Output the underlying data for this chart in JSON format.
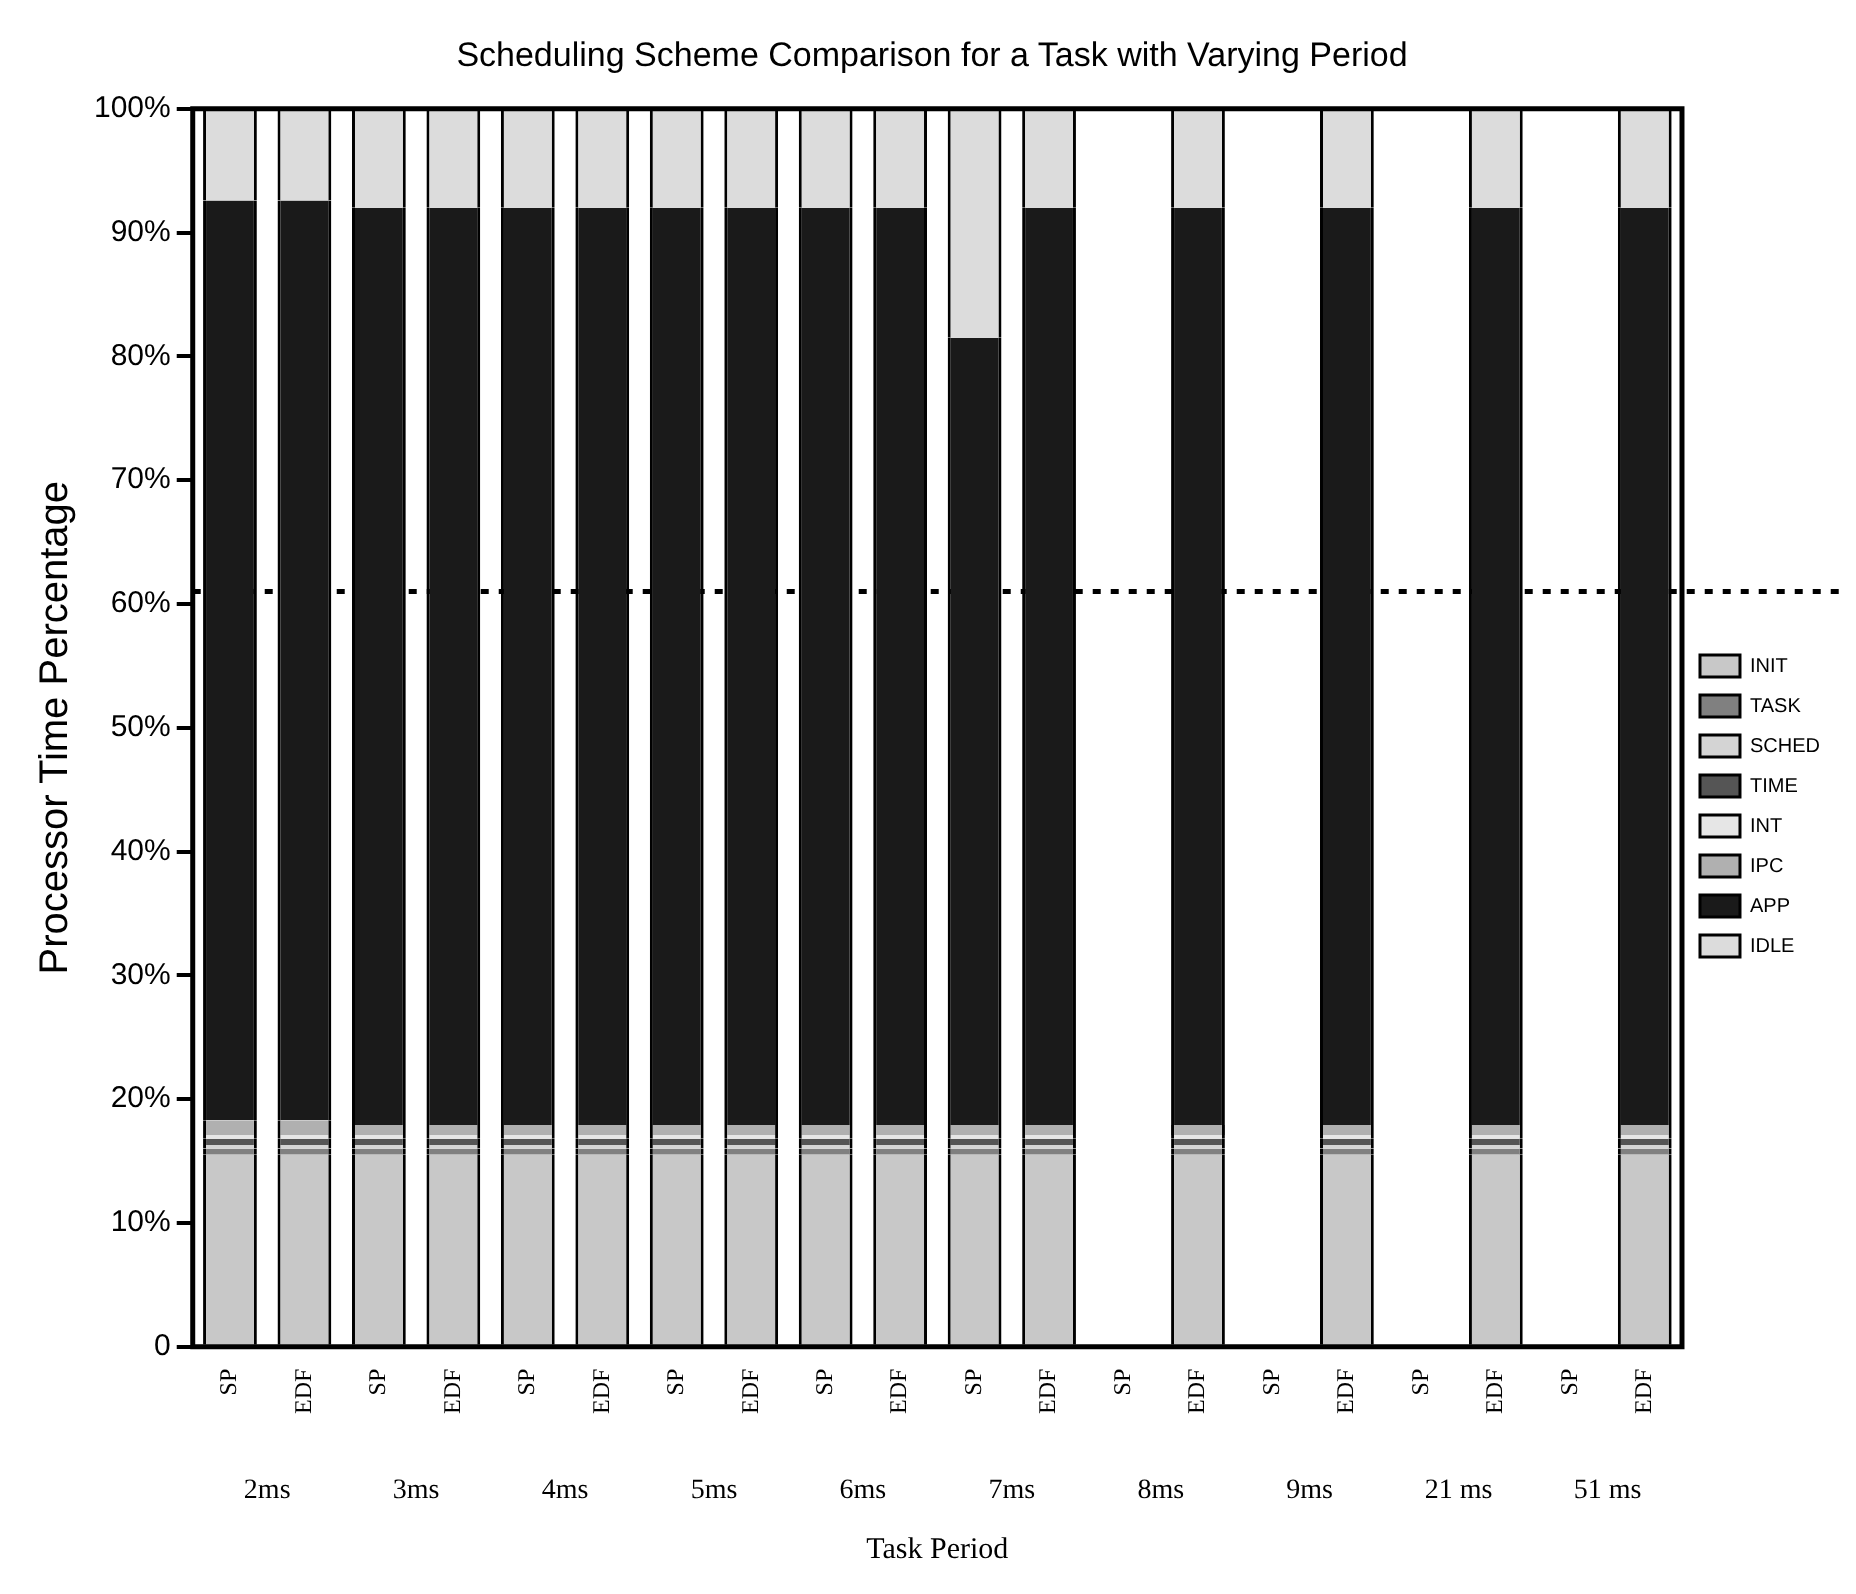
{
  "chart_data": {
    "type": "bar",
    "title": "Scheduling Scheme Comparison for a Task with Varying Period",
    "xlabel": "Task Period",
    "ylabel": "Processor Time Percentage",
    "categories": [
      "SP",
      "EDF",
      "SP",
      "EDF",
      "SP",
      "EDF",
      "SP",
      "EDF",
      "SP",
      "EDF",
      "SP",
      "EDF",
      "SP",
      "EDF",
      "SP",
      "EDF",
      "SP",
      "EDF",
      "SP",
      "EDF"
    ],
    "stacked": true,
    "series": [
      {
        "name": "INIT",
        "color": "#c8c8c8",
        "values": [
          15.5,
          15.5,
          15.5,
          15.5,
          15.5,
          15.5,
          15.5,
          15.5,
          15.5,
          15.5,
          15.5,
          15.5,
          null,
          15.5,
          null,
          15.5,
          null,
          15.5,
          null,
          15.5
        ]
      },
      {
        "name": "TASK",
        "color": "#808080",
        "values": [
          0.5,
          0.5,
          0.5,
          0.5,
          0.5,
          0.5,
          0.5,
          0.5,
          0.5,
          0.5,
          0.5,
          0.5,
          null,
          0.5,
          null,
          0.5,
          null,
          0.5,
          null,
          0.5
        ]
      },
      {
        "name": "SCHED",
        "color": "#d4d4d4",
        "values": [
          0.3,
          0.3,
          0.3,
          0.3,
          0.3,
          0.3,
          0.3,
          0.3,
          0.3,
          0.3,
          0.3,
          0.3,
          null,
          0.3,
          null,
          0.3,
          null,
          0.3,
          null,
          0.3
        ]
      },
      {
        "name": "TIME",
        "color": "#555555",
        "values": [
          0.5,
          0.5,
          0.5,
          0.5,
          0.5,
          0.5,
          0.5,
          0.5,
          0.5,
          0.5,
          0.5,
          0.5,
          null,
          0.5,
          null,
          0.5,
          null,
          0.5,
          null,
          0.5
        ]
      },
      {
        "name": "INT",
        "color": "#e6e6e6",
        "values": [
          0.3,
          0.3,
          0.3,
          0.3,
          0.3,
          0.3,
          0.3,
          0.3,
          0.3,
          0.3,
          0.3,
          0.3,
          null,
          0.3,
          null,
          0.3,
          null,
          0.3,
          null,
          0.3
        ]
      },
      {
        "name": "IPC",
        "color": "#b0b0b0",
        "values": [
          1.2,
          1.2,
          0.8,
          0.8,
          0.8,
          0.8,
          0.8,
          0.8,
          0.8,
          0.8,
          0.8,
          0.8,
          null,
          0.8,
          null,
          0.8,
          null,
          0.8,
          null,
          0.8
        ]
      },
      {
        "name": "APP",
        "color": "#1a1a1a",
        "values": [
          74.3,
          74.3,
          74.1,
          74.1,
          74.1,
          74.1,
          74.1,
          74.1,
          74.1,
          74.1,
          63.6,
          74.1,
          null,
          74.1,
          null,
          74.1,
          null,
          74.1,
          null,
          74.1
        ]
      },
      {
        "name": "IDLE",
        "color": "#dcdcdc",
        "values": [
          7.4,
          7.4,
          8,
          8,
          8,
          8,
          8,
          8,
          8,
          8,
          18.5,
          8,
          null,
          8,
          null,
          8,
          null,
          8,
          null,
          8
        ]
      }
    ],
    "ylim": [
      0,
      100
    ],
    "yticks": [
      0,
      {
        "value": 10,
        "label": "10%"
      },
      {
        "value": 20,
        "label": "20%"
      },
      {
        "value": 30,
        "label": "30%"
      },
      {
        "value": 40,
        "label": "40%"
      },
      {
        "value": 50,
        "label": "50%"
      },
      {
        "value": 60,
        "label": "60%"
      },
      {
        "value": 70,
        "label": "70%"
      },
      {
        "value": 80,
        "label": "80%"
      },
      {
        "value": 90,
        "label": "90%"
      },
      {
        "value": 100,
        "label": "100%"
      }
    ],
    "ref_lines": [
      {
        "axis": "y",
        "value": 61,
        "line_style": "dotted",
        "color": "#000000"
      }
    ],
    "annotations": [
      "2ms",
      "3ms",
      "4ms",
      "5ms",
      "6ms",
      "7ms",
      "8ms",
      "9ms",
      "21 ms",
      "51 ms"
    ],
    "grid": false,
    "legend": "right"
  }
}
